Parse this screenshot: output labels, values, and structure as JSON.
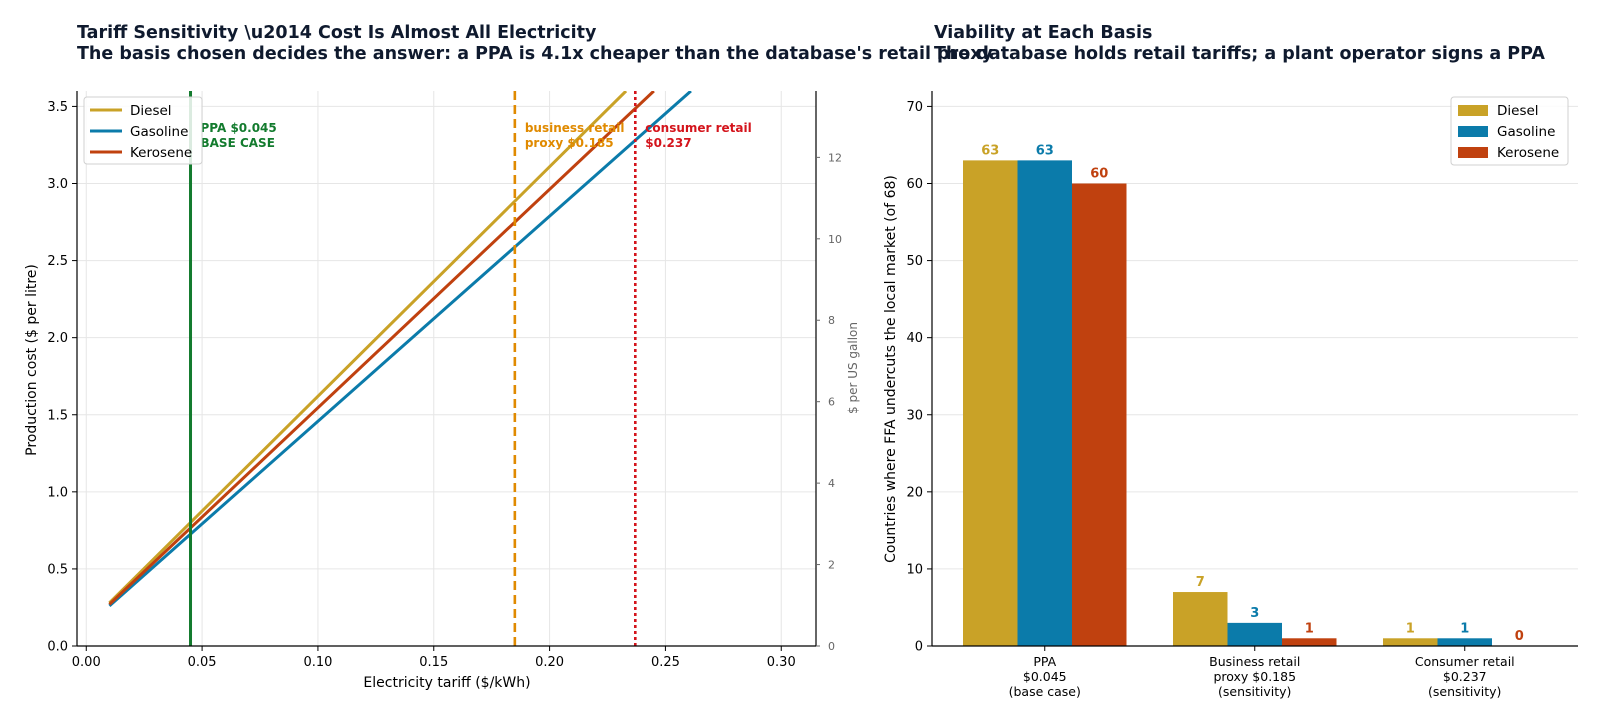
{
  "chart_data": [
    {
      "type": "line",
      "title": "Tariff Sensitivity \\u2014 Cost Is Almost All Electricity",
      "subtitle": "The basis chosen decides the answer: a PPA is 4.1x cheaper than the database's retail proxy",
      "xlabel": "Electricity tariff ($/kWh)",
      "ylabel": "Production cost ($ per litre)",
      "y2label": "$ per US gallon",
      "xlim": [
        -0.004,
        0.315
      ],
      "ylim": [
        0,
        3.6
      ],
      "y2lim": [
        0,
        13.63
      ],
      "xticks": [
        "0.00",
        "0.05",
        "0.10",
        "0.15",
        "0.20",
        "0.25",
        "0.30"
      ],
      "yticks": [
        "0.0",
        "0.5",
        "1.0",
        "1.5",
        "2.0",
        "2.5",
        "3.0",
        "3.5"
      ],
      "y2ticks": [
        "0",
        "2",
        "4",
        "6",
        "8",
        "10",
        "12"
      ],
      "grid": true,
      "legend_position": "top-left",
      "series": [
        {
          "name": "Diesel",
          "color": "#C9A227",
          "x": [
            0.01,
            0.233
          ],
          "y": [
            0.28,
            3.6
          ]
        },
        {
          "name": "Gasoline",
          "color": "#0B7BAA",
          "x": [
            0.01,
            0.261
          ],
          "y": [
            0.26,
            3.6
          ]
        },
        {
          "name": "Kerosene",
          "color": "#C0410F",
          "x": [
            0.01,
            0.245
          ],
          "y": [
            0.27,
            3.6
          ]
        }
      ],
      "reference_lines": [
        {
          "x": 0.045,
          "style": "solid",
          "color": "#137B2E",
          "label": [
            "PPA $0.045",
            "BASE CASE"
          ]
        },
        {
          "x": 0.185,
          "style": "dashed",
          "color": "#E08A00",
          "label": [
            "business retail",
            "proxy $0.185"
          ]
        },
        {
          "x": 0.237,
          "style": "dotted",
          "color": "#D4141C",
          "label": [
            "consumer retail",
            "$0.237"
          ]
        }
      ]
    },
    {
      "type": "bar",
      "title": "Viability at Each Basis",
      "subtitle": "The database holds retail tariffs; a plant operator signs a PPA",
      "ylabel": "Countries where FFA undercuts the local market (of 68)",
      "ylim": [
        0,
        72
      ],
      "yticks": [
        "0",
        "10",
        "20",
        "30",
        "40",
        "50",
        "60",
        "70"
      ],
      "grid": true,
      "legend_position": "top-right",
      "categories": [
        [
          "PPA",
          "$0.045",
          "(base case)"
        ],
        [
          "Business retail",
          "proxy $0.185",
          "(sensitivity)"
        ],
        [
          "Consumer retail",
          "$0.237",
          "(sensitivity)"
        ]
      ],
      "series": [
        {
          "name": "Diesel",
          "color": "#C9A227",
          "values": [
            63,
            7,
            1
          ]
        },
        {
          "name": "Gasoline",
          "color": "#0B7BAA",
          "values": [
            63,
            3,
            1
          ]
        },
        {
          "name": "Kerosene",
          "color": "#C0410F",
          "values": [
            60,
            1,
            0
          ]
        }
      ]
    }
  ]
}
